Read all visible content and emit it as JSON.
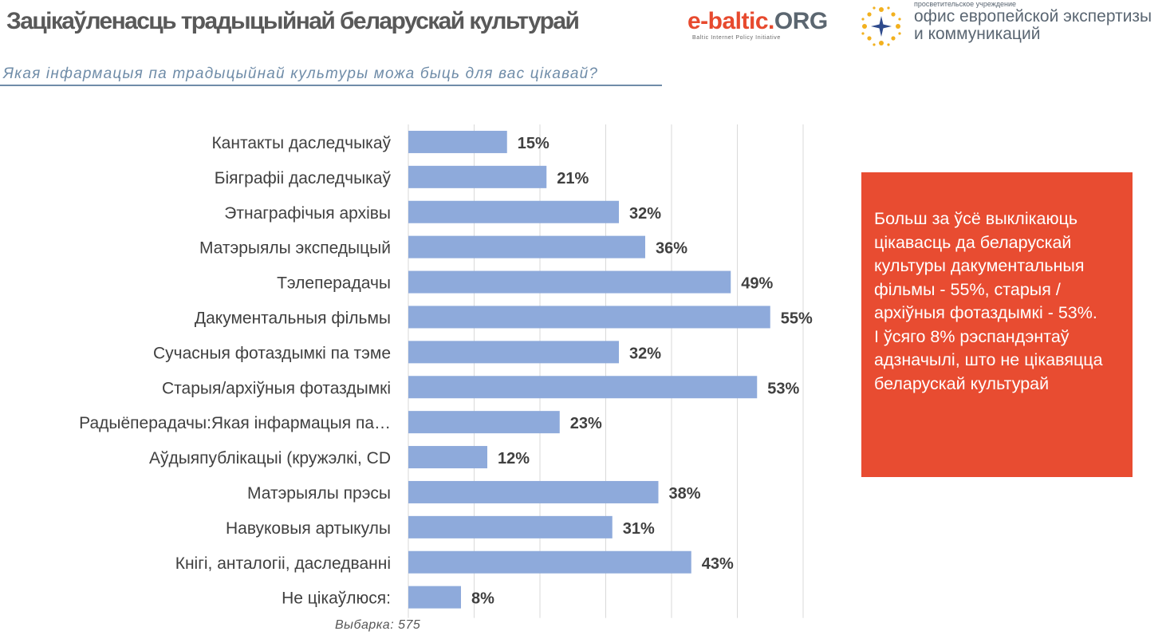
{
  "header": {
    "title": "Зацікаўленасць традыцыйнай беларускай культурай",
    "subtitle": "Якая інфармацыя па традыцыйнай культуры можа быць для вас цікавай?"
  },
  "logos": {
    "ebaltic_main": "e-baltic.",
    "ebaltic_org": "ORG",
    "ebaltic_tagline": "Baltic Internet Policy Initiative",
    "office_small": "просветительское учреждение",
    "office_line1": "офис европейской экспертизы",
    "office_line2": "и коммуникаций",
    "accent_color": "#e74a2e"
  },
  "chart_data": {
    "type": "bar",
    "orientation": "horizontal",
    "title": "Якая інфармацыя па традыцыйнай культуры можа быць для вас цікавай?",
    "categories": [
      "Кантакты даследчыкаў",
      "Біяграфіі даследчыкаў",
      "Этнаграфічыя архівы",
      "Матэрыялы экспедыцый",
      "Тэлеперадачы",
      "Дакументальныя фільмы",
      "Сучасныя фотаздымкі па тэме",
      "Старыя/архіўныя фотаздымкі",
      "Радыёперадачы:Якая інфармацыя па…",
      "Аўдыяпублікацыі (кружэлкі, CD",
      "Матэрыялы прэсы",
      "Навуковыя артыкулы",
      "Кнігі, анталогіі, даследванні",
      "Не цікаўлюся:"
    ],
    "values": [
      15,
      21,
      32,
      36,
      49,
      55,
      32,
      53,
      23,
      12,
      38,
      31,
      43,
      8
    ],
    "value_labels": [
      "15%",
      "21%",
      "32%",
      "36%",
      "49%",
      "55%",
      "32%",
      "53%",
      "23%",
      "12%",
      "38%",
      "31%",
      "43%",
      "8%"
    ],
    "xlim": [
      0,
      60
    ],
    "grid_step": 10,
    "grid": true,
    "unit": "%",
    "bar_color": "#8eaadb",
    "grid_color": "#d9d9d9"
  },
  "callout": {
    "text": "Больш за ўсё выклікаюць цікавасць да беларускай культуры дакументальныя фільмы - 55%, старыя / архіўныя фотаздымкі - 53%.\nІ ўсяго 8% рэспандэнтаў адзначылі, што не цікавяцца беларускай культурай",
    "color": "#e84c31"
  },
  "footer": {
    "sample": "Выбарка:  575"
  }
}
